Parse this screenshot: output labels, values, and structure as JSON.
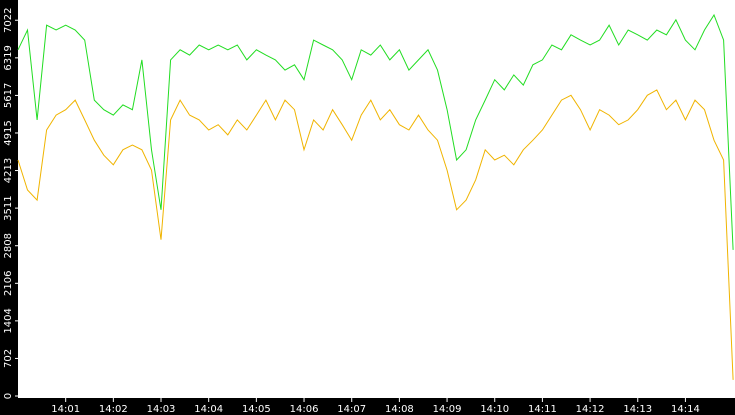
{
  "chart_data": {
    "type": "line",
    "x": [
      0,
      0.2,
      0.4,
      0.6,
      0.8,
      1.0,
      1.2,
      1.4,
      1.6,
      1.8,
      2.0,
      2.2,
      2.4,
      2.6,
      2.8,
      3.0,
      3.2,
      3.4,
      3.6,
      3.8,
      4.0,
      4.2,
      4.4,
      4.6,
      4.8,
      5.0,
      5.2,
      5.4,
      5.6,
      5.8,
      6.0,
      6.2,
      6.4,
      6.6,
      6.8,
      7.0,
      7.2,
      7.4,
      7.6,
      7.8,
      8.0,
      8.2,
      8.4,
      8.6,
      8.8,
      9.0,
      9.2,
      9.4,
      9.6,
      9.8,
      10.0,
      10.2,
      10.4,
      10.6,
      10.8,
      11.0,
      11.2,
      11.4,
      11.6,
      11.8,
      12.0,
      12.2,
      12.4,
      12.6,
      12.8,
      13.0,
      13.2,
      13.4,
      13.6,
      13.8,
      14.0,
      14.2,
      14.4,
      14.6,
      14.8,
      15.0
    ],
    "series": [
      {
        "color": "#22dd22",
        "values": [
          6470,
          6840,
          5160,
          6930,
          6840,
          6930,
          6840,
          6650,
          5530,
          5350,
          5250,
          5440,
          5350,
          6280,
          4600,
          3480,
          6280,
          6470,
          6370,
          6560,
          6470,
          6560,
          6470,
          6560,
          6280,
          6470,
          6370,
          6280,
          6090,
          6190,
          5910,
          6650,
          6560,
          6470,
          6280,
          5910,
          6470,
          6370,
          6560,
          6280,
          6470,
          6090,
          6280,
          6470,
          6090,
          5350,
          4410,
          4600,
          5160,
          5530,
          5910,
          5720,
          6000,
          5810,
          6190,
          6280,
          6560,
          6470,
          6750,
          6650,
          6560,
          6650,
          6930,
          6560,
          6840,
          6750,
          6650,
          6840,
          6750,
          7030,
          6650,
          6470,
          6840,
          7120,
          6650,
          2730
        ]
      },
      {
        "color": "#f0b400",
        "values": [
          4410,
          3850,
          3660,
          4970,
          5250,
          5350,
          5530,
          5160,
          4780,
          4500,
          4320,
          4600,
          4690,
          4600,
          4220,
          2920,
          5160,
          5530,
          5250,
          5160,
          4970,
          5070,
          4880,
          5160,
          4970,
          5250,
          5530,
          5160,
          5530,
          5350,
          4600,
          5160,
          4970,
          5350,
          5070,
          4780,
          5250,
          5530,
          5160,
          5350,
          5070,
          4970,
          5250,
          4970,
          4780,
          4220,
          3480,
          3660,
          4040,
          4600,
          4410,
          4500,
          4320,
          4600,
          4780,
          4970,
          5250,
          5530,
          5620,
          5350,
          4970,
          5350,
          5250,
          5070,
          5160,
          5350,
          5620,
          5720,
          5350,
          5530,
          5160,
          5530,
          5350,
          4780,
          4410,
          300
        ]
      }
    ],
    "xlim": [
      0,
      15.04
    ],
    "xticks": [
      {
        "value": 1,
        "label": "14:01"
      },
      {
        "value": 2,
        "label": "14:02"
      },
      {
        "value": 3,
        "label": "14:03"
      },
      {
        "value": 4,
        "label": "14:04"
      },
      {
        "value": 5,
        "label": "14:05"
      },
      {
        "value": 6,
        "label": "14:06"
      },
      {
        "value": 7,
        "label": "14:07"
      },
      {
        "value": 8,
        "label": "14:08"
      },
      {
        "value": 9,
        "label": "14:09"
      },
      {
        "value": 10,
        "label": "14:10"
      },
      {
        "value": 11,
        "label": "14:11"
      },
      {
        "value": 12,
        "label": "14:12"
      },
      {
        "value": 13,
        "label": "14:13"
      },
      {
        "value": 14,
        "label": "14:14"
      }
    ],
    "ylim": [
      0,
      7400
    ],
    "yticks": [
      0,
      702,
      1404,
      2106,
      2808,
      3511,
      4213,
      4915,
      5617,
      6319,
      7022
    ]
  }
}
